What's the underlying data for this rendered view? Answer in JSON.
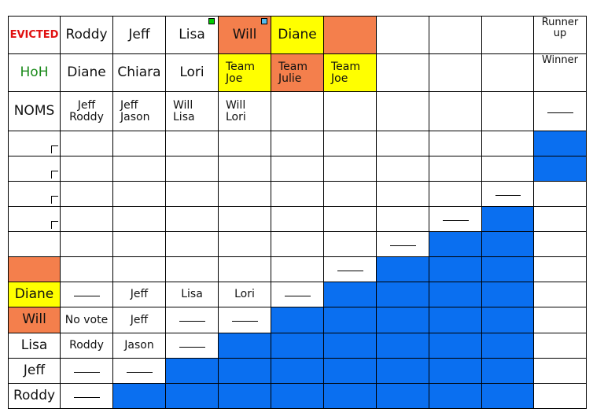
{
  "colors": {
    "orange": "#f47f4c",
    "yellow": "#ffff00",
    "blue": "#0a6ff0",
    "evicted_red": "#e01010",
    "hoh_green": "#1a8a1a",
    "marker_green": "#00cc00",
    "marker_blue": "#55bbee"
  },
  "rows": [
    {
      "cells": [
        {
          "text": "EVICTED",
          "color": "red",
          "size": "xs"
        },
        {
          "text": "Roddy"
        },
        {
          "text": "Jeff"
        },
        {
          "text": "Lisa",
          "marker": "green"
        },
        {
          "text": "Will",
          "fill": "orange",
          "marker": "blue"
        },
        {
          "text": "Diane",
          "fill": "yellow"
        },
        {
          "fill": "orange"
        },
        {},
        {},
        {},
        {
          "text": "Runner\nup",
          "size": "xs",
          "valign": "top"
        }
      ]
    },
    {
      "cells": [
        {
          "text": "HoH",
          "color": "green"
        },
        {
          "text": "Diane"
        },
        {
          "text": "Chiara"
        },
        {
          "text": "Lori"
        },
        {
          "text": "Team\nJoe",
          "fill": "yellow",
          "size": "sm",
          "align": "left"
        },
        {
          "text": "Team\nJulie",
          "fill": "orange",
          "size": "sm",
          "align": "left"
        },
        {
          "text": "Team\nJoe",
          "fill": "yellow",
          "size": "sm",
          "align": "left"
        },
        {},
        {},
        {},
        {
          "text": "Winner",
          "size": "xs",
          "valign": "top"
        }
      ]
    },
    {
      "cells": [
        {
          "text": "NOMS"
        },
        {
          "text": "Jeff\nRoddy",
          "size": "sm"
        },
        {
          "text": "Jeff\nJason",
          "size": "sm",
          "align": "left"
        },
        {
          "text": "Will\nLisa",
          "size": "sm",
          "align": "left"
        },
        {
          "text": "Will\nLori",
          "size": "sm",
          "align": "left"
        },
        {},
        {},
        {},
        {},
        {},
        {
          "dash": true
        }
      ]
    },
    {
      "cells": [
        {
          "tick": true
        },
        {},
        {},
        {},
        {},
        {},
        {},
        {},
        {},
        {},
        {
          "fill": "blue"
        }
      ]
    },
    {
      "cells": [
        {
          "tick": true
        },
        {},
        {},
        {},
        {},
        {},
        {},
        {},
        {},
        {},
        {
          "fill": "blue"
        }
      ]
    },
    {
      "cells": [
        {
          "tick": true
        },
        {},
        {},
        {},
        {},
        {},
        {},
        {},
        {},
        {
          "dash": true
        },
        {}
      ]
    },
    {
      "cells": [
        {
          "tick": true
        },
        {},
        {},
        {},
        {},
        {},
        {},
        {},
        {
          "dash": true
        },
        {
          "fill": "blue"
        },
        {}
      ]
    },
    {
      "cells": [
        {},
        {},
        {},
        {},
        {},
        {},
        {},
        {
          "dash": true
        },
        {
          "fill": "blue"
        },
        {
          "fill": "blue"
        },
        {}
      ]
    },
    {
      "cells": [
        {
          "fill": "orange"
        },
        {},
        {},
        {},
        {},
        {},
        {
          "dash": true
        },
        {
          "fill": "blue"
        },
        {
          "fill": "blue"
        },
        {
          "fill": "blue"
        },
        {}
      ]
    },
    {
      "cells": [
        {
          "text": "Diane",
          "fill": "yellow"
        },
        {
          "dash": true
        },
        {
          "text": "Jeff",
          "size": "sm"
        },
        {
          "text": "Lisa",
          "size": "sm"
        },
        {
          "text": "Lori",
          "size": "sm"
        },
        {
          "dash": true
        },
        {
          "fill": "blue"
        },
        {
          "fill": "blue"
        },
        {
          "fill": "blue"
        },
        {
          "fill": "blue"
        },
        {}
      ]
    },
    {
      "cells": [
        {
          "text": "Will",
          "fill": "orange"
        },
        {
          "text": "No vote",
          "size": "sm"
        },
        {
          "text": "Jeff",
          "size": "sm"
        },
        {
          "dash": true
        },
        {
          "dash": true
        },
        {
          "fill": "blue"
        },
        {
          "fill": "blue"
        },
        {
          "fill": "blue"
        },
        {
          "fill": "blue"
        },
        {
          "fill": "blue"
        },
        {}
      ]
    },
    {
      "cells": [
        {
          "text": "Lisa"
        },
        {
          "text": "Roddy",
          "size": "sm"
        },
        {
          "text": "Jason",
          "size": "sm"
        },
        {
          "dash": true
        },
        {
          "fill": "blue"
        },
        {
          "fill": "blue"
        },
        {
          "fill": "blue"
        },
        {
          "fill": "blue"
        },
        {
          "fill": "blue"
        },
        {
          "fill": "blue"
        },
        {}
      ]
    },
    {
      "cells": [
        {
          "text": "Jeff"
        },
        {
          "dash": true
        },
        {
          "dash": true
        },
        {
          "fill": "blue"
        },
        {
          "fill": "blue"
        },
        {
          "fill": "blue"
        },
        {
          "fill": "blue"
        },
        {
          "fill": "blue"
        },
        {
          "fill": "blue"
        },
        {
          "fill": "blue"
        },
        {}
      ]
    },
    {
      "cells": [
        {
          "text": "Roddy"
        },
        {
          "dash": true
        },
        {
          "fill": "blue"
        },
        {
          "fill": "blue"
        },
        {
          "fill": "blue"
        },
        {
          "fill": "blue"
        },
        {
          "fill": "blue"
        },
        {
          "fill": "blue"
        },
        {
          "fill": "blue"
        },
        {
          "fill": "blue"
        },
        {}
      ]
    }
  ]
}
